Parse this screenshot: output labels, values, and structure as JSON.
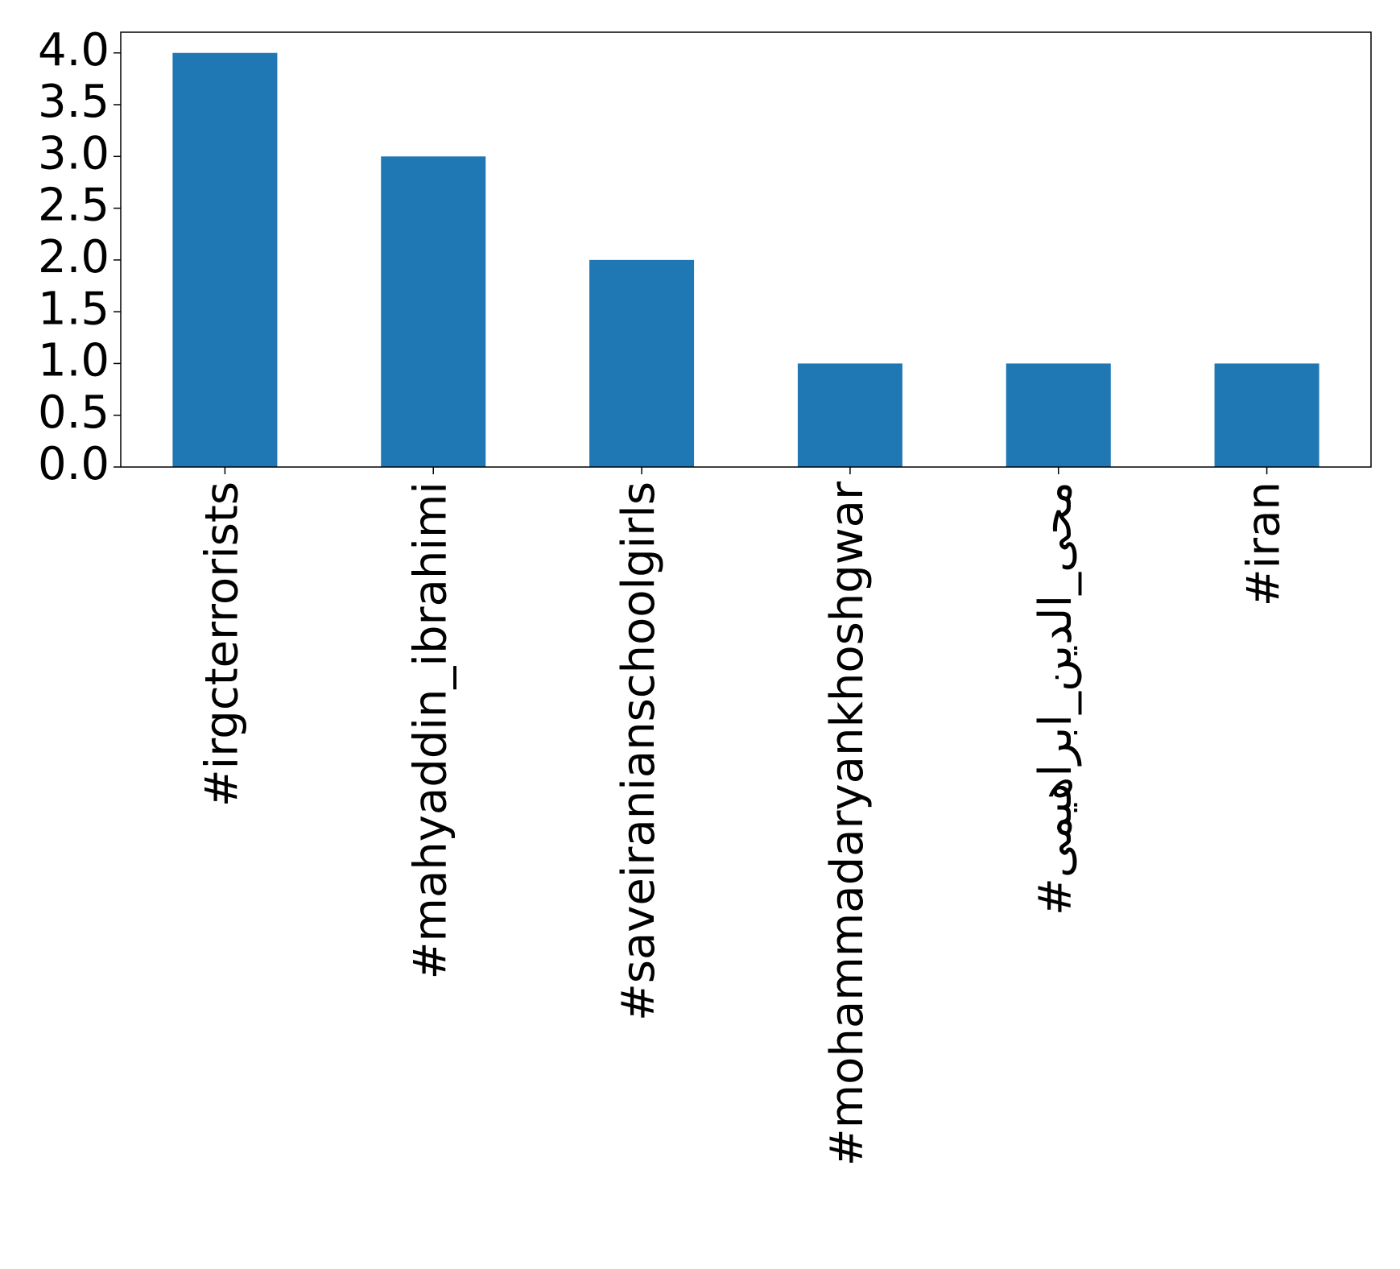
{
  "chart_data": {
    "type": "bar",
    "categories": [
      "#irgcterrorists",
      "#mahyaddin_ibrahimi",
      "#saveiranianschoolgirls",
      "#mohammadaryankhoshgwar",
      "#محی_الدین_ابراهیمی",
      "#iran"
    ],
    "values": [
      4,
      3,
      2,
      1,
      1,
      1
    ],
    "title": "",
    "xlabel": "",
    "ylabel": "",
    "ylim": [
      0,
      4.2
    ],
    "yticks": [
      "0.0",
      "0.5",
      "1.0",
      "1.5",
      "2.0",
      "2.5",
      "3.0",
      "3.5",
      "4.0"
    ],
    "bar_color": "#1f77b4",
    "grid": false,
    "legend": "none"
  }
}
